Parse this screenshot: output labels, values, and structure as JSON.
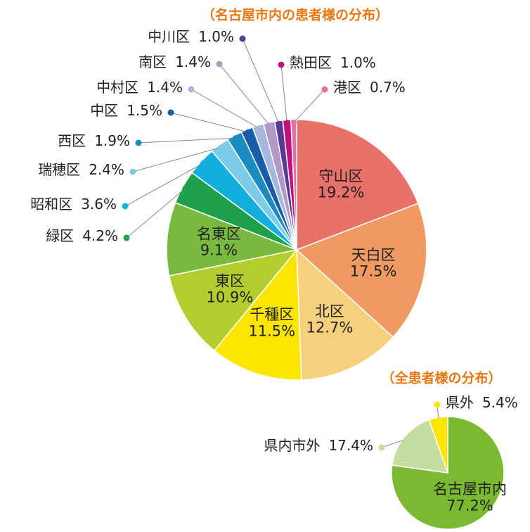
{
  "chart_data": [
    {
      "type": "pie",
      "title": "（名古屋市内の患者様の分布）",
      "categories": [
        "守山区",
        "天白区",
        "北区",
        "千種区",
        "東区",
        "名東区",
        "緑区",
        "昭和区",
        "瑞穂区",
        "西区",
        "中区",
        "中村区",
        "南区",
        "中川区",
        "熱田区",
        "港区"
      ],
      "values": [
        19.2,
        17.5,
        12.7,
        11.5,
        10.9,
        9.1,
        4.2,
        3.6,
        2.4,
        1.9,
        1.5,
        1.4,
        1.4,
        1.0,
        1.0,
        0.7
      ],
      "value_labels": [
        "19.2%",
        "17.5%",
        "12.7%",
        "11.5%",
        "10.9%",
        "9.1%",
        "4.2%",
        "3.6%",
        "2.4%",
        "1.9%",
        "1.5%",
        "1.4%",
        "1.4%",
        "1.0%",
        "1.0%",
        "0.7%"
      ],
      "colors": [
        "#e8716a",
        "#ef9a62",
        "#f7d07e",
        "#fce600",
        "#b5cc2e",
        "#7ab940",
        "#1fa04a",
        "#13aee0",
        "#7ccbe8",
        "#1b8cc0",
        "#1a5ca8",
        "#a6b8dc",
        "#b198c8",
        "#5a3a95",
        "#c4117a",
        "#e470a8"
      ]
    },
    {
      "type": "pie",
      "title": "（全患者様の分布）",
      "categories": [
        "名古屋市内",
        "県内市外",
        "県外"
      ],
      "values": [
        77.2,
        17.4,
        5.4
      ],
      "value_labels": [
        "77.2%",
        "17.4%",
        "5.4%"
      ],
      "colors": [
        "#7ab930",
        "#c3dea0",
        "#fce600"
      ]
    }
  ]
}
